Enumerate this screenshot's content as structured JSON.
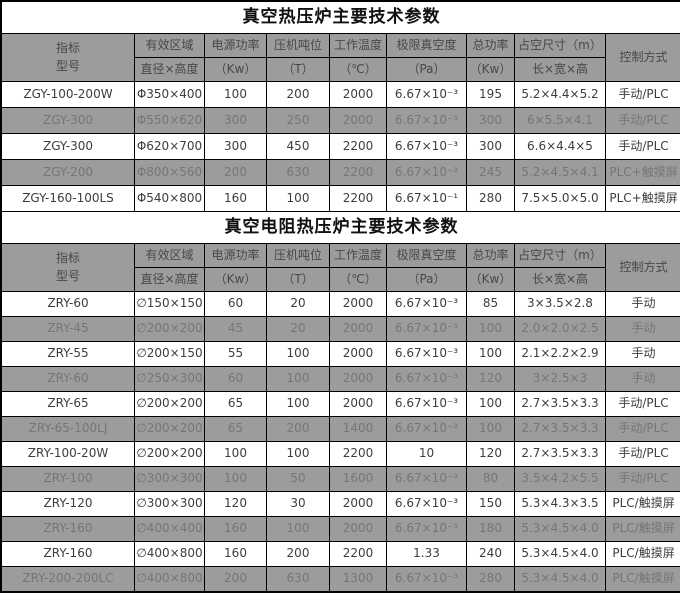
{
  "colors": {
    "header_bg": "#9c9c9c",
    "gray_row_bg": "#9c9c9c",
    "white_row_bg": "#ffffff",
    "border": "#000000",
    "gray_row_text": "#767676",
    "white_row_text": "#3d3d3d",
    "title_text": "#111111"
  },
  "header_labels": {
    "corner_top": "指标",
    "corner_bottom": "型号",
    "columns": [
      {
        "top": "有效区域",
        "bottom": "直径×高度"
      },
      {
        "top": "电源功率",
        "bottom": "（Kw）"
      },
      {
        "top": "压机吨位",
        "bottom": "（T）"
      },
      {
        "top": "工作温度",
        "bottom": "（℃）"
      },
      {
        "top": "极限真空度",
        "bottom": "（Pa）"
      },
      {
        "top": "总功率",
        "bottom": "（Kw）"
      },
      {
        "top": "占空尺寸（m）",
        "bottom": "长×宽×高"
      }
    ],
    "control": "控制方式"
  },
  "tables": [
    {
      "title": "真空热压炉主要技术参数",
      "rows": [
        [
          "ZGY-100-200W",
          "Φ350×400",
          "100",
          "200",
          "2000",
          "6.67×10⁻³",
          "195",
          "5.2×4.4×5.2",
          "手动/PLC"
        ],
        [
          "ZGY-300",
          "Φ550×620",
          "300",
          "250",
          "2000",
          "6.67×10⁻³",
          "300",
          "6×5.5×4.1",
          "手动/PLC"
        ],
        [
          "ZGY-300",
          "Φ620×700",
          "300",
          "450",
          "2200",
          "6.67×10⁻³",
          "300",
          "6.6×4.4×5",
          "手动/PLC"
        ],
        [
          "ZGY-200",
          "Φ800×560",
          "200",
          "630",
          "2200",
          "6.67×10⁻³",
          "245",
          "5.2×4.5×4.1",
          "PLC+触摸屏"
        ],
        [
          "ZGY-160-100LS",
          "Φ540×800",
          "160",
          "100",
          "2200",
          "6.67×10⁻¹",
          "280",
          "7.5×5.0×5.0",
          "PLC+触摸屏"
        ]
      ]
    },
    {
      "title": "真空电阻热压炉主要技术参数",
      "rows": [
        [
          "ZRY-60",
          "∅150×150",
          "60",
          "20",
          "2000",
          "6.67×10⁻³",
          "85",
          "3×3.5×2.8",
          "手动"
        ],
        [
          "ZRY-45",
          "∅200×200",
          "45",
          "20",
          "2000",
          "6.67×10⁻³",
          "100",
          "2.0×2.0×2.5",
          "手动"
        ],
        [
          "ZRY-55",
          "∅200×150",
          "55",
          "100",
          "2000",
          "6.67×10⁻³",
          "100",
          "2.1×2.2×2.9",
          "手动"
        ],
        [
          "ZRY-60",
          "∅250×300",
          "60",
          "100",
          "2000",
          "6.67×10⁻³",
          "120",
          "3×2.5×3",
          "手动"
        ],
        [
          "ZRY-65",
          "∅200×200",
          "65",
          "100",
          "2000",
          "6.67×10⁻³",
          "100",
          "2.7×3.5×3.3",
          "手动/PLC"
        ],
        [
          "ZRY-65-100LJ",
          "∅200×200",
          "65",
          "200",
          "1400",
          "6.67×10⁻³",
          "100",
          "2.7×3.5×3.3",
          "手动/PLC"
        ],
        [
          "ZRY-100-20W",
          "∅200×200",
          "100",
          "100",
          "2200",
          "10",
          "120",
          "2.7×3.5×3.3",
          "手动/PLC"
        ],
        [
          "ZRY-100",
          "∅300×300",
          "100",
          "50",
          "1600",
          "6.67×10⁻³",
          "80",
          "3.5×4.2×5.5",
          "手动/PLC"
        ],
        [
          "ZRY-120",
          "∅300×300",
          "120",
          "30",
          "2000",
          "6.67×10⁻³",
          "150",
          "5.3×4.3×3.5",
          "PLC/触摸屏"
        ],
        [
          "ZRY-160",
          "∅400×400",
          "160",
          "100",
          "2000",
          "6.67×10⁻³",
          "180",
          "5.3×4.5×4.0",
          "PLC/触摸屏"
        ],
        [
          "ZRY-160",
          "∅400×800",
          "160",
          "200",
          "2200",
          "1.33",
          "240",
          "5.3×4.5×4.0",
          "PLC/触摸屏"
        ],
        [
          "ZRY-200-200LC",
          "∅400×800",
          "200",
          "630",
          "1300",
          "6.67×10⁻³",
          "280",
          "5.3×4.5×4.0",
          "PLC/触摸屏"
        ]
      ]
    }
  ]
}
